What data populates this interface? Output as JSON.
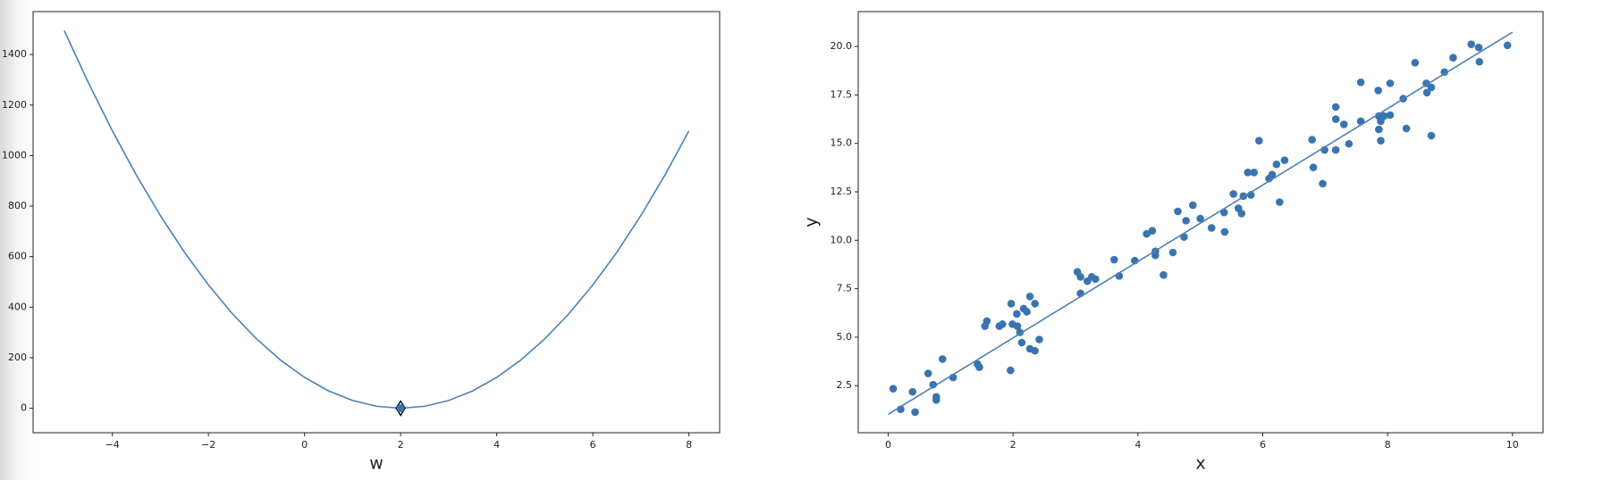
{
  "chart_data": [
    {
      "type": "line",
      "xlabel": "w",
      "xlim": [
        -5.65,
        8.64
      ],
      "ylim": [
        -97,
        1570
      ],
      "xticks": [
        {
          "value": -4,
          "label": "−4"
        },
        {
          "value": -2,
          "label": "−2"
        },
        0,
        2,
        4,
        6,
        8
      ],
      "yticks": [
        0,
        200,
        400,
        600,
        800,
        1000,
        1200,
        1400
      ],
      "series": [
        {
          "style": "line",
          "color": "#4c80b5",
          "x": [
            -5,
            -4.5,
            -4,
            -3.5,
            -3,
            -2.5,
            -2,
            -1.5,
            -1,
            -0.5,
            0,
            0.5,
            1,
            1.5,
            2,
            2.5,
            3,
            3.5,
            4,
            4.5,
            5,
            5.5,
            6,
            6.5,
            7,
            7.5,
            8
          ],
          "values": [
            1494.5,
            1288.6,
            1098,
            922.6,
            762.5,
            617.6,
            488,
            373.6,
            274.5,
            190.6,
            122,
            68.6,
            30.5,
            7.6,
            0,
            7.6,
            30.5,
            68.6,
            122,
            190.6,
            274.5,
            373.6,
            488,
            617.6,
            762.5,
            922.6,
            1098
          ]
        },
        {
          "style": "marker",
          "color": "#3a74b0",
          "x": [
            2
          ],
          "values": [
            0
          ]
        }
      ]
    },
    {
      "type": "scatter",
      "xlabel": "x",
      "ylabel": "y",
      "xlim": [
        -0.48,
        10.49
      ],
      "ylim": [
        0.07,
        21.8
      ],
      "xticks": [
        0,
        2,
        4,
        6,
        8,
        10
      ],
      "yticks": [
        2.5,
        {
          "value": 5,
          "label": "5.0"
        },
        7.5,
        {
          "value": 10,
          "label": "10.0"
        },
        12.5,
        {
          "value": 15,
          "label": "15.0"
        },
        17.5,
        {
          "value": 20,
          "label": "20.0"
        }
      ],
      "series": [
        {
          "style": "points",
          "color": "#3a74b0",
          "x": [
            0.08,
            0.2,
            0.39,
            0.43,
            0.64,
            0.72,
            0.77,
            0.77,
            0.87,
            1.04,
            1.43,
            1.46,
            1.55,
            1.58,
            1.78,
            1.83,
            1.96,
            1.97,
            1.99,
            2.06,
            2.07,
            2.11,
            2.14,
            2.17,
            2.22,
            2.27,
            2.27,
            2.35,
            2.35,
            2.42,
            3.03,
            3.08,
            3.08,
            3.19,
            3.26,
            3.32,
            3.62,
            3.7,
            3.95,
            4.14,
            4.23,
            4.28,
            4.28,
            4.41,
            4.56,
            4.64,
            4.74,
            4.77,
            4.88,
            5.0,
            5.18,
            5.38,
            5.39,
            5.53,
            5.61,
            5.66,
            5.69,
            5.76,
            5.81,
            5.86,
            5.94,
            6.1,
            6.15,
            6.22,
            6.27,
            6.35,
            6.79,
            6.81,
            6.96,
            6.99,
            7.17,
            7.17,
            7.17,
            7.3,
            7.38,
            7.57,
            7.57,
            7.85,
            7.86,
            7.86,
            7.89,
            7.89,
            7.94,
            8.04,
            8.04,
            8.25,
            8.3,
            8.44,
            8.62,
            8.63,
            8.7,
            8.7,
            8.91,
            9.05,
            9.34,
            9.46,
            9.47,
            9.92
          ],
          "values": [
            2.34,
            1.28,
            2.18,
            1.13,
            3.13,
            2.55,
            1.92,
            1.76,
            3.87,
            2.92,
            3.61,
            3.45,
            5.57,
            5.83,
            5.57,
            5.67,
            3.29,
            6.73,
            5.67,
            6.2,
            5.57,
            5.25,
            4.72,
            6.47,
            6.31,
            7.1,
            4.4,
            6.73,
            4.3,
            4.88,
            8.37,
            8.11,
            7.26,
            7.89,
            8.11,
            8.0,
            9.0,
            8.16,
            8.95,
            10.33,
            10.49,
            9.43,
            9.22,
            8.21,
            9.37,
            11.49,
            10.17,
            11.01,
            11.81,
            11.12,
            10.64,
            11.44,
            10.43,
            12.39,
            11.65,
            11.38,
            12.28,
            13.5,
            12.34,
            13.5,
            15.14,
            13.18,
            13.39,
            13.92,
            11.97,
            14.13,
            15.19,
            13.76,
            12.92,
            14.66,
            16.88,
            16.25,
            14.66,
            15.98,
            14.98,
            16.14,
            18.15,
            17.73,
            16.41,
            15.72,
            16.14,
            15.14,
            16.41,
            16.46,
            18.1,
            17.31,
            15.77,
            19.16,
            18.1,
            17.62,
            17.89,
            15.4,
            18.68,
            19.42,
            20.11,
            19.95,
            19.21,
            20.06
          ]
        },
        {
          "style": "line",
          "color": "#4c80b5",
          "x": [
            0,
            10
          ],
          "values": [
            1.02,
            20.74
          ]
        }
      ]
    }
  ]
}
